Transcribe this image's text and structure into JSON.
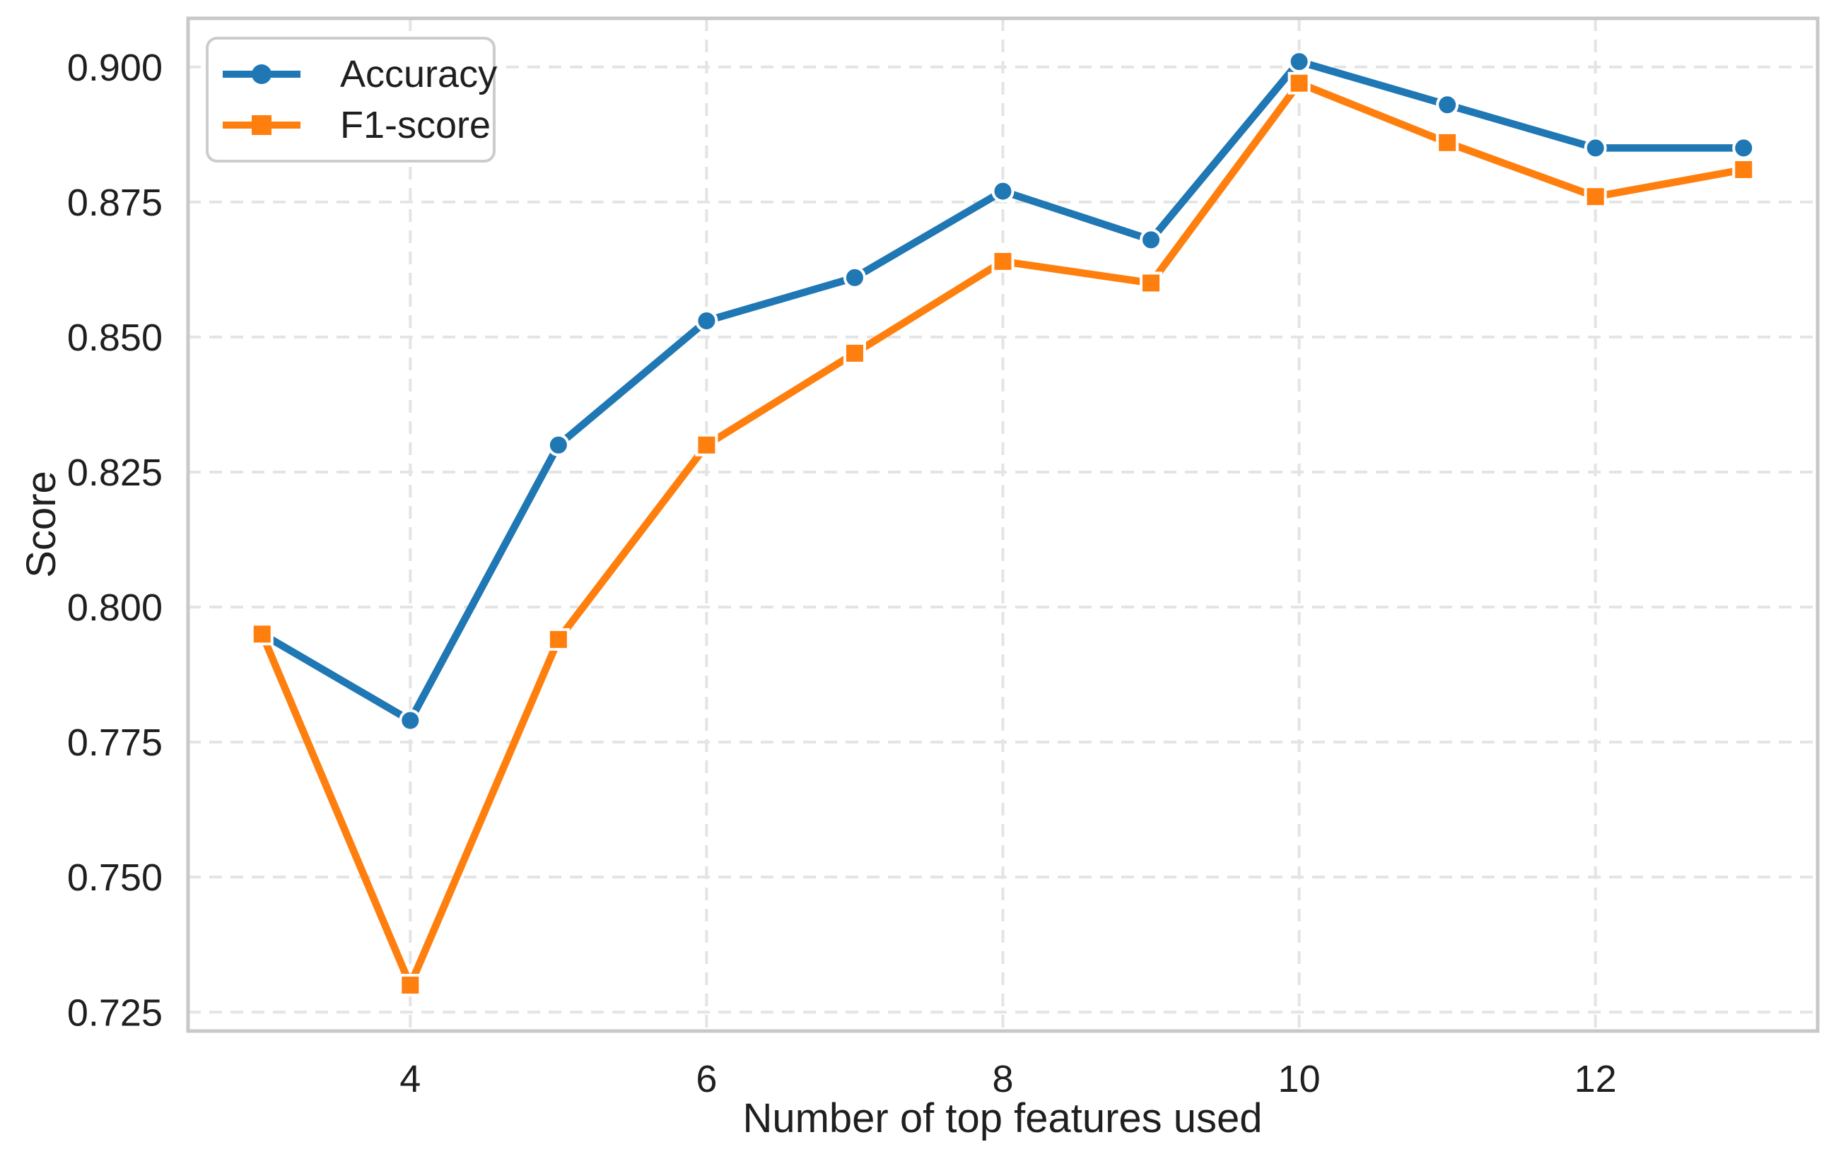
{
  "chart_data": {
    "type": "line",
    "title": "",
    "xlabel": "Number of top features used",
    "ylabel": "Score",
    "x": [
      3,
      4,
      5,
      6,
      7,
      8,
      9,
      10,
      11,
      12,
      13
    ],
    "series": [
      {
        "name": "Accuracy",
        "color": "#1f77b4",
        "marker": "circle",
        "values": [
          0.795,
          0.779,
          0.83,
          0.853,
          0.861,
          0.877,
          0.868,
          0.901,
          0.893,
          0.885,
          0.885
        ]
      },
      {
        "name": "F1-score",
        "color": "#ff7f0e",
        "marker": "square",
        "values": [
          0.795,
          0.73,
          0.794,
          0.83,
          0.847,
          0.864,
          0.86,
          0.897,
          0.886,
          0.876,
          0.881
        ]
      }
    ],
    "xlim": [
      2.5,
      13.5
    ],
    "ylim": [
      0.7215,
      0.909
    ],
    "xticks": [
      4,
      6,
      8,
      10,
      12
    ],
    "xtick_labels": [
      "4",
      "6",
      "8",
      "10",
      "12"
    ],
    "yticks": [
      0.725,
      0.75,
      0.775,
      0.8,
      0.825,
      0.85,
      0.875,
      0.9
    ],
    "ytick_labels": [
      "0.725",
      "0.750",
      "0.775",
      "0.800",
      "0.825",
      "0.850",
      "0.875",
      "0.900"
    ],
    "grid": {
      "visible": true,
      "linestyle": "dashed",
      "color": "#e4e4e4"
    },
    "legend": {
      "position": "upper-left",
      "entries": [
        "Accuracy",
        "F1-score"
      ]
    },
    "colors": {
      "accuracy_line": "#1f77b4",
      "f1_line": "#ff7f0e",
      "marker_edge": "#ffffff",
      "grid_line": "#e4e4e4",
      "spine": "#c8c8c8",
      "text": "#1f1f1f",
      "legend_border": "#cccccc",
      "background": "#ffffff"
    }
  }
}
